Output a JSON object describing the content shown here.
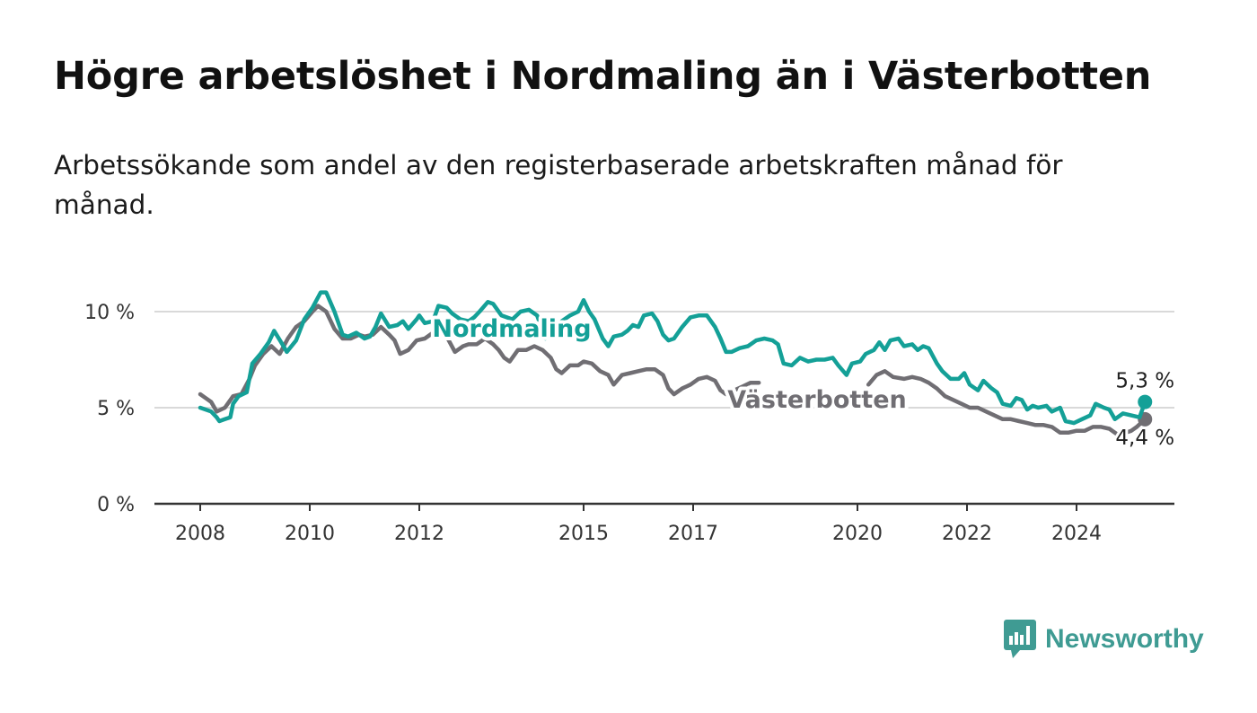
{
  "title": "Högre arbetslöshet i Nordmaling än i Västerbotten",
  "subtitle": "Arbetssökande som andel av den registerbaserade arbetskraften månad för månad.",
  "brand": {
    "name": "Newsworthy",
    "color": "#3f9b93"
  },
  "chart_data": {
    "type": "line",
    "xlabel": "",
    "ylabel": "",
    "xlim": [
      2007.8,
      2025.2
    ],
    "ylim": [
      0,
      10
    ],
    "x_ticks": [
      {
        "value": 2008,
        "label": "2008"
      },
      {
        "value": 2010,
        "label": "2010"
      },
      {
        "value": 2012,
        "label": "2012"
      },
      {
        "value": 2015,
        "label": "2015"
      },
      {
        "value": 2017,
        "label": "2017"
      },
      {
        "value": 2020,
        "label": "2020"
      },
      {
        "value": 2022,
        "label": "2022"
      },
      {
        "value": 2024,
        "label": "2024"
      }
    ],
    "y_ticks": [
      {
        "value": 0,
        "label": "0 %"
      },
      {
        "value": 5,
        "label": "5 %"
      },
      {
        "value": 10,
        "label": "10 %"
      }
    ],
    "grid": true,
    "legend": "inline",
    "series": [
      {
        "name": "Nordmaling",
        "color": "#14a097",
        "end_label": "5,3 %",
        "points": [
          [
            2008.0,
            5.0
          ],
          [
            2008.1,
            4.9
          ],
          [
            2008.2,
            4.8
          ],
          [
            2008.3,
            4.5
          ],
          [
            2008.35,
            4.3
          ],
          [
            2008.45,
            4.4
          ],
          [
            2008.55,
            4.5
          ],
          [
            2008.6,
            5.2
          ],
          [
            2008.7,
            5.6
          ],
          [
            2008.85,
            5.8
          ],
          [
            2008.95,
            7.3
          ],
          [
            2009.1,
            7.8
          ],
          [
            2009.25,
            8.4
          ],
          [
            2009.35,
            9.0
          ],
          [
            2009.5,
            8.3
          ],
          [
            2009.58,
            7.9
          ],
          [
            2009.75,
            8.5
          ],
          [
            2009.9,
            9.6
          ],
          [
            2010.05,
            10.2
          ],
          [
            2010.2,
            11.0
          ],
          [
            2010.3,
            11.0
          ],
          [
            2010.45,
            10.0
          ],
          [
            2010.6,
            8.8
          ],
          [
            2010.7,
            8.7
          ],
          [
            2010.85,
            8.9
          ],
          [
            2011.0,
            8.6
          ],
          [
            2011.1,
            8.7
          ],
          [
            2011.2,
            9.2
          ],
          [
            2011.3,
            9.9
          ],
          [
            2011.45,
            9.2
          ],
          [
            2011.6,
            9.3
          ],
          [
            2011.7,
            9.5
          ],
          [
            2011.8,
            9.1
          ],
          [
            2011.95,
            9.6
          ],
          [
            2012.0,
            9.8
          ],
          [
            2012.1,
            9.4
          ],
          [
            2012.25,
            9.5
          ],
          [
            2012.35,
            10.3
          ],
          [
            2012.5,
            10.2
          ],
          [
            2012.6,
            9.9
          ],
          [
            2012.75,
            9.6
          ],
          [
            2012.9,
            9.5
          ],
          [
            2013.0,
            9.7
          ],
          [
            2013.1,
            10.0
          ],
          [
            2013.25,
            10.5
          ],
          [
            2013.35,
            10.4
          ],
          [
            2013.5,
            9.8
          ],
          [
            2013.7,
            9.6
          ],
          [
            2013.85,
            10.0
          ],
          [
            2014.0,
            10.1
          ],
          [
            2014.15,
            9.8
          ],
          [
            2014.3,
            8.6
          ],
          [
            2014.45,
            9.0
          ],
          [
            2014.6,
            9.5
          ],
          [
            2014.75,
            9.8
          ],
          [
            2014.9,
            10.0
          ],
          [
            2015.0,
            10.6
          ],
          [
            2015.1,
            10.0
          ],
          [
            2015.2,
            9.6
          ],
          [
            2015.35,
            8.6
          ],
          [
            2015.45,
            8.2
          ],
          [
            2015.55,
            8.7
          ],
          [
            2015.7,
            8.8
          ],
          [
            2015.8,
            9.0
          ],
          [
            2015.9,
            9.3
          ],
          [
            2016.0,
            9.2
          ],
          [
            2016.1,
            9.8
          ],
          [
            2016.25,
            9.9
          ],
          [
            2016.35,
            9.5
          ],
          [
            2016.45,
            8.8
          ],
          [
            2016.55,
            8.5
          ],
          [
            2016.65,
            8.6
          ],
          [
            2016.8,
            9.2
          ],
          [
            2016.95,
            9.7
          ],
          [
            2017.1,
            9.8
          ],
          [
            2017.25,
            9.8
          ],
          [
            2017.4,
            9.2
          ],
          [
            2017.5,
            8.6
          ],
          [
            2017.6,
            7.9
          ],
          [
            2017.7,
            7.9
          ],
          [
            2017.85,
            8.1
          ],
          [
            2018.0,
            8.2
          ],
          [
            2018.15,
            8.5
          ],
          [
            2018.3,
            8.6
          ],
          [
            2018.45,
            8.5
          ],
          [
            2018.55,
            8.3
          ],
          [
            2018.65,
            7.3
          ],
          [
            2018.8,
            7.2
          ],
          [
            2018.95,
            7.6
          ],
          [
            2019.1,
            7.4
          ],
          [
            2019.25,
            7.5
          ],
          [
            2019.4,
            7.5
          ],
          [
            2019.55,
            7.6
          ],
          [
            2019.65,
            7.2
          ],
          [
            2019.8,
            6.7
          ],
          [
            2019.9,
            7.3
          ],
          [
            2020.05,
            7.4
          ],
          [
            2020.15,
            7.8
          ],
          [
            2020.3,
            8.0
          ],
          [
            2020.4,
            8.4
          ],
          [
            2020.5,
            8.0
          ],
          [
            2020.6,
            8.5
          ],
          [
            2020.75,
            8.6
          ],
          [
            2020.85,
            8.2
          ],
          [
            2021.0,
            8.3
          ],
          [
            2021.1,
            8.0
          ],
          [
            2021.2,
            8.2
          ],
          [
            2021.3,
            8.1
          ],
          [
            2021.45,
            7.3
          ],
          [
            2021.55,
            6.9
          ],
          [
            2021.7,
            6.5
          ],
          [
            2021.85,
            6.5
          ],
          [
            2021.95,
            6.8
          ],
          [
            2022.05,
            6.2
          ],
          [
            2022.2,
            5.9
          ],
          [
            2022.3,
            6.4
          ],
          [
            2022.45,
            6.0
          ],
          [
            2022.55,
            5.8
          ],
          [
            2022.65,
            5.2
          ],
          [
            2022.8,
            5.1
          ],
          [
            2022.9,
            5.5
          ],
          [
            2023.0,
            5.4
          ],
          [
            2023.1,
            4.9
          ],
          [
            2023.2,
            5.1
          ],
          [
            2023.3,
            5.0
          ],
          [
            2023.45,
            5.1
          ],
          [
            2023.55,
            4.8
          ],
          [
            2023.7,
            5.0
          ],
          [
            2023.8,
            4.3
          ],
          [
            2023.95,
            4.2
          ],
          [
            2024.1,
            4.4
          ],
          [
            2024.25,
            4.6
          ],
          [
            2024.35,
            5.2
          ],
          [
            2024.5,
            5.0
          ],
          [
            2024.6,
            4.9
          ],
          [
            2024.7,
            4.4
          ],
          [
            2024.85,
            4.7
          ],
          [
            2025.0,
            4.6
          ],
          [
            2025.15,
            4.5
          ],
          [
            2025.25,
            5.3
          ]
        ]
      },
      {
        "name": "Västerbotten",
        "color": "#706e73",
        "end_label": "4,4 %",
        "points": [
          [
            2008.0,
            5.7
          ],
          [
            2008.1,
            5.5
          ],
          [
            2008.2,
            5.3
          ],
          [
            2008.3,
            4.8
          ],
          [
            2008.45,
            5.0
          ],
          [
            2008.6,
            5.6
          ],
          [
            2008.75,
            5.7
          ],
          [
            2008.9,
            6.5
          ],
          [
            2009.0,
            7.2
          ],
          [
            2009.15,
            7.8
          ],
          [
            2009.3,
            8.2
          ],
          [
            2009.45,
            7.8
          ],
          [
            2009.6,
            8.6
          ],
          [
            2009.75,
            9.2
          ],
          [
            2009.9,
            9.5
          ],
          [
            2010.05,
            10.0
          ],
          [
            2010.15,
            10.3
          ],
          [
            2010.3,
            10.0
          ],
          [
            2010.45,
            9.1
          ],
          [
            2010.6,
            8.6
          ],
          [
            2010.75,
            8.6
          ],
          [
            2010.9,
            8.8
          ],
          [
            2011.0,
            8.7
          ],
          [
            2011.15,
            8.8
          ],
          [
            2011.3,
            9.2
          ],
          [
            2011.45,
            8.8
          ],
          [
            2011.55,
            8.5
          ],
          [
            2011.65,
            7.8
          ],
          [
            2011.8,
            8.0
          ],
          [
            2011.95,
            8.5
          ],
          [
            2012.1,
            8.6
          ],
          [
            2012.25,
            8.9
          ],
          [
            2012.35,
            8.8
          ],
          [
            2012.5,
            8.7
          ],
          [
            2012.65,
            7.9
          ],
          [
            2012.8,
            8.2
          ],
          [
            2012.9,
            8.3
          ],
          [
            2013.05,
            8.3
          ],
          [
            2013.2,
            8.6
          ],
          [
            2013.35,
            8.3
          ],
          [
            2013.45,
            8.0
          ],
          [
            2013.55,
            7.6
          ],
          [
            2013.65,
            7.4
          ],
          [
            2013.8,
            8.0
          ],
          [
            2013.95,
            8.0
          ],
          [
            2014.1,
            8.2
          ],
          [
            2014.25,
            8.0
          ],
          [
            2014.4,
            7.6
          ],
          [
            2014.5,
            7.0
          ],
          [
            2014.6,
            6.8
          ],
          [
            2014.75,
            7.2
          ],
          [
            2014.9,
            7.2
          ],
          [
            2015.0,
            7.4
          ],
          [
            2015.15,
            7.3
          ],
          [
            2015.3,
            6.9
          ],
          [
            2015.45,
            6.7
          ],
          [
            2015.55,
            6.2
          ],
          [
            2015.7,
            6.7
          ],
          [
            2015.85,
            6.8
          ],
          [
            2016.0,
            6.9
          ],
          [
            2016.15,
            7.0
          ],
          [
            2016.3,
            7.0
          ],
          [
            2016.45,
            6.7
          ],
          [
            2016.55,
            6.0
          ],
          [
            2016.65,
            5.7
          ],
          [
            2016.8,
            6.0
          ],
          [
            2016.95,
            6.2
          ],
          [
            2017.1,
            6.5
          ],
          [
            2017.25,
            6.6
          ],
          [
            2017.4,
            6.4
          ],
          [
            2017.5,
            5.9
          ],
          [
            2017.6,
            5.7
          ],
          [
            2017.75,
            5.9
          ],
          [
            2017.9,
            6.1
          ],
          [
            2018.05,
            6.3
          ],
          [
            2018.2,
            6.3
          ],
          [
            2020.2,
            6.2
          ],
          [
            2020.35,
            6.7
          ],
          [
            2020.5,
            6.9
          ],
          [
            2020.65,
            6.6
          ],
          [
            2020.85,
            6.5
          ],
          [
            2021.0,
            6.6
          ],
          [
            2021.15,
            6.5
          ],
          [
            2021.3,
            6.3
          ],
          [
            2021.45,
            6.0
          ],
          [
            2021.6,
            5.6
          ],
          [
            2021.75,
            5.4
          ],
          [
            2021.9,
            5.2
          ],
          [
            2022.05,
            5.0
          ],
          [
            2022.2,
            5.0
          ],
          [
            2022.35,
            4.8
          ],
          [
            2022.5,
            4.6
          ],
          [
            2022.65,
            4.4
          ],
          [
            2022.8,
            4.4
          ],
          [
            2022.95,
            4.3
          ],
          [
            2023.1,
            4.2
          ],
          [
            2023.25,
            4.1
          ],
          [
            2023.4,
            4.1
          ],
          [
            2023.55,
            4.0
          ],
          [
            2023.7,
            3.7
          ],
          [
            2023.85,
            3.7
          ],
          [
            2024.0,
            3.8
          ],
          [
            2024.15,
            3.8
          ],
          [
            2024.3,
            4.0
          ],
          [
            2024.45,
            4.0
          ],
          [
            2024.6,
            3.9
          ],
          [
            2024.75,
            3.6
          ],
          [
            2024.9,
            3.7
          ],
          [
            2025.0,
            3.8
          ],
          [
            2025.1,
            4.0
          ],
          [
            2025.25,
            4.4
          ]
        ]
      }
    ]
  }
}
